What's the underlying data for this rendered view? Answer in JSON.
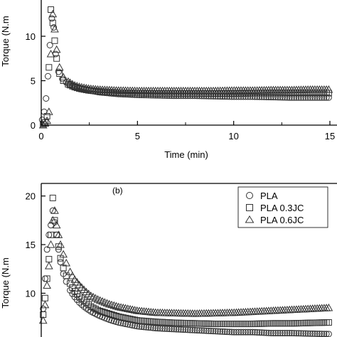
{
  "chart_data": [
    {
      "type": "scatter",
      "panel_label": "",
      "xlabel": "Time (min)",
      "ylabel": "Torque (N.m",
      "xlim": [
        0,
        15
      ],
      "ylim": [
        0,
        13.2
      ],
      "x_ticks": [
        0,
        5,
        10,
        15
      ],
      "x_tick_labels": [
        "0",
        "5",
        "10",
        "15"
      ],
      "y_ticks": [
        0,
        5,
        10
      ],
      "y_tick_labels": [
        "0",
        "5",
        "10"
      ],
      "marker_color": "#333333",
      "series": [
        {
          "marker": "circle",
          "x": [
            0.05,
            0.15,
            0.25,
            0.35,
            0.45,
            0.55,
            0.65,
            0.75,
            0.9,
            1.1,
            1.3,
            1.6,
            2.0,
            2.5,
            3,
            4,
            5,
            6,
            7,
            8,
            9,
            10,
            11,
            12,
            13,
            14,
            15
          ],
          "y": [
            0.6,
            1.5,
            3.0,
            5.5,
            9.0,
            12.0,
            11.0,
            8.0,
            6.0,
            5.2,
            4.8,
            4.4,
            4.1,
            3.9,
            3.7,
            3.5,
            3.4,
            3.35,
            3.3,
            3.3,
            3.25,
            3.2,
            3.2,
            3.15,
            3.1,
            3.1,
            3.1
          ]
        },
        {
          "marker": "square",
          "x": [
            0.1,
            0.2,
            0.3,
            0.4,
            0.5,
            0.6,
            0.7,
            0.8,
            0.95,
            1.15,
            1.4,
            1.7,
            2.0,
            2.5,
            3,
            4,
            5,
            6,
            7,
            8,
            9,
            10,
            11,
            12,
            13,
            14,
            15
          ],
          "y": [
            0.1,
            0.3,
            1.0,
            6.5,
            13.0,
            11.5,
            9.5,
            7.5,
            5.8,
            5.0,
            4.6,
            4.3,
            4.1,
            3.9,
            3.8,
            3.65,
            3.6,
            3.55,
            3.55,
            3.55,
            3.55,
            3.55,
            3.6,
            3.6,
            3.6,
            3.6,
            3.6
          ]
        },
        {
          "marker": "triangle",
          "x": [
            0.1,
            0.2,
            0.3,
            0.4,
            0.5,
            0.6,
            0.7,
            0.8,
            0.95,
            1.15,
            1.4,
            1.7,
            2.0,
            2.5,
            3,
            4,
            5,
            6,
            7,
            8,
            9,
            10,
            11,
            12,
            13,
            14,
            15
          ],
          "y": [
            0.0,
            0.2,
            0.5,
            1.5,
            8.0,
            12.5,
            10.8,
            8.5,
            6.5,
            5.4,
            4.9,
            4.5,
            4.3,
            4.1,
            4.0,
            3.9,
            3.85,
            3.85,
            3.85,
            3.85,
            3.85,
            3.9,
            3.9,
            3.95,
            3.95,
            4.0,
            4.0
          ]
        }
      ]
    },
    {
      "type": "scatter",
      "panel_label": "(b)",
      "xlabel": "",
      "ylabel": "Torque (N.m",
      "xlim": [
        0,
        15
      ],
      "ylim": [
        5.5,
        21
      ],
      "x_ticks": [],
      "x_tick_labels": [],
      "y_ticks": [
        10,
        15,
        20
      ],
      "y_tick_labels": [
        "10",
        "15",
        "20"
      ],
      "marker_color": "#333333",
      "legend_position": "top-right",
      "series": [
        {
          "name": "PLA",
          "marker": "circle",
          "x": [
            0.1,
            0.2,
            0.3,
            0.4,
            0.5,
            0.6,
            0.7,
            0.8,
            0.9,
            1.0,
            1.15,
            1.3,
            1.5,
            1.7,
            2.0,
            2.3,
            2.6,
            3.0,
            3.5,
            4,
            4.5,
            5,
            6,
            7,
            8,
            9,
            10,
            11,
            12,
            13,
            14,
            15
          ],
          "y": [
            8.4,
            11.5,
            14.5,
            16.0,
            17.0,
            18.5,
            17.3,
            16.0,
            14.5,
            13.2,
            12.0,
            11.2,
            10.3,
            9.7,
            9.0,
            8.5,
            8.1,
            7.7,
            7.3,
            7.0,
            6.8,
            6.6,
            6.4,
            6.3,
            6.2,
            6.1,
            6.0,
            6.0,
            5.9,
            5.9,
            5.85,
            5.8
          ]
        },
        {
          "name": "PLA 0.3JC",
          "marker": "square",
          "x": [
            0.1,
            0.2,
            0.3,
            0.4,
            0.5,
            0.6,
            0.7,
            0.8,
            0.9,
            1.0,
            1.15,
            1.3,
            1.5,
            1.7,
            2.0,
            2.3,
            2.6,
            3.0,
            3.5,
            4,
            4.5,
            5,
            6,
            7,
            8,
            9,
            10,
            11,
            12,
            13,
            14,
            15
          ],
          "y": [
            7.8,
            9.5,
            11.5,
            13.5,
            16.0,
            19.8,
            17.5,
            16.0,
            14.8,
            13.6,
            12.6,
            11.8,
            11.0,
            10.3,
            9.6,
            9.1,
            8.6,
            8.2,
            7.9,
            7.6,
            7.4,
            7.2,
            7.05,
            6.95,
            6.9,
            6.85,
            6.85,
            6.85,
            6.9,
            6.9,
            6.95,
            7.0
          ]
        },
        {
          "name": "PLA 0.6JC",
          "marker": "triangle",
          "x": [
            0.1,
            0.2,
            0.3,
            0.4,
            0.5,
            0.6,
            0.7,
            0.8,
            0.9,
            1.0,
            1.15,
            1.3,
            1.5,
            1.7,
            2.0,
            2.3,
            2.6,
            3.0,
            3.5,
            4,
            4.5,
            5,
            6,
            7,
            8,
            9,
            10,
            11,
            12,
            13,
            14,
            15
          ],
          "y": [
            7.2,
            8.8,
            10.8,
            12.8,
            15.0,
            17.5,
            18.5,
            17.0,
            16.0,
            15.0,
            14.0,
            13.1,
            12.2,
            11.5,
            10.8,
            10.2,
            9.7,
            9.3,
            8.9,
            8.6,
            8.4,
            8.2,
            8.0,
            7.95,
            7.9,
            7.95,
            8.0,
            8.1,
            8.2,
            8.3,
            8.4,
            8.5
          ]
        }
      ]
    }
  ]
}
